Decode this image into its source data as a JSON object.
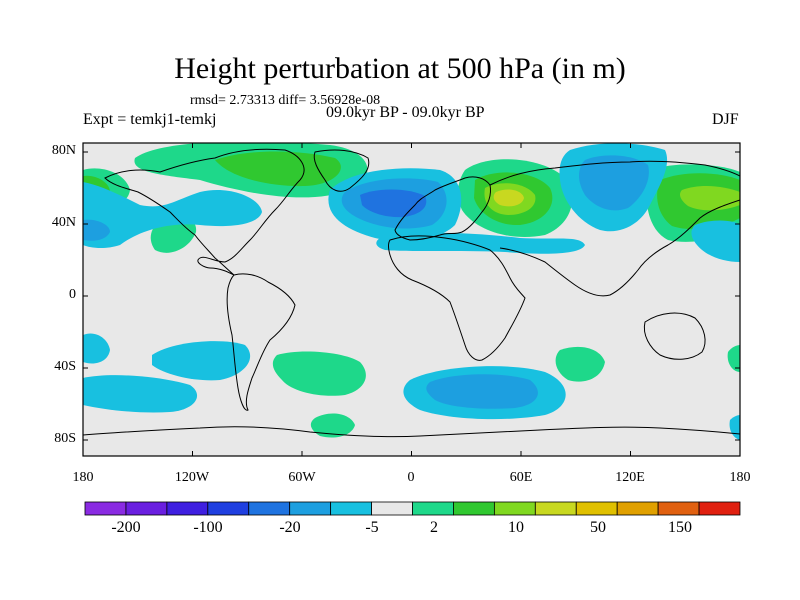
{
  "title": "Height perturbation at 500 hPa (in m)",
  "stats_text": "rmsd= 2.73313 diff= 3.56928e-08",
  "period": "09.0kyr BP - 09.0kyr BP",
  "experiment": "Expt = temkj1-temkj",
  "season": "DJF",
  "lat_labels": [
    "80N",
    "40N",
    "0",
    "40S",
    "80S"
  ],
  "lon_labels": [
    "180",
    "120W",
    "60W",
    "0",
    "60E",
    "120E",
    "180"
  ],
  "colorbar": {
    "labels": [
      "-200",
      "-100",
      "-20",
      "-5",
      "2",
      "10",
      "50",
      "150"
    ],
    "colors": [
      "#8a2be2",
      "#6a1fe0",
      "#3f1fe0",
      "#1f3fe0",
      "#1f73e0",
      "#1d9fe0",
      "#18c0e0",
      "#e8e8e8",
      "#1ed88a",
      "#30c830",
      "#80d820",
      "#c8d820",
      "#e0c000",
      "#e0a000",
      "#e06010",
      "#e02010"
    ]
  },
  "map": {
    "background": "#e8e8e8"
  }
}
